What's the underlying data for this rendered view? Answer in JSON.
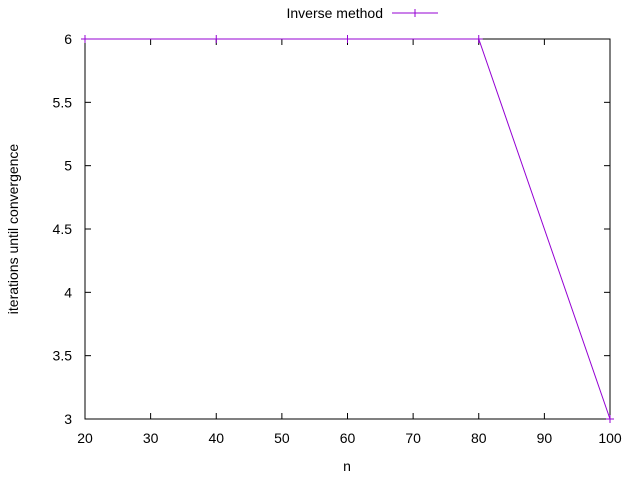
{
  "chart_data": {
    "type": "line",
    "xlabel": "n",
    "ylabel": "iterations until convergence",
    "xlim": [
      20,
      100
    ],
    "ylim": [
      3,
      6
    ],
    "xticks": [
      "20",
      "30",
      "40",
      "50",
      "60",
      "70",
      "80",
      "90",
      "100"
    ],
    "yticks": [
      "3",
      "3.5",
      "4",
      "4.5",
      "5",
      "5.5",
      "6"
    ],
    "grid": false,
    "legend_position": "top-center",
    "series": [
      {
        "name": "Inverse method",
        "color": "#9400d3",
        "marker": "plus",
        "x": [
          20,
          40,
          60,
          80,
          100
        ],
        "y": [
          6,
          6,
          6,
          6,
          3
        ]
      }
    ]
  }
}
